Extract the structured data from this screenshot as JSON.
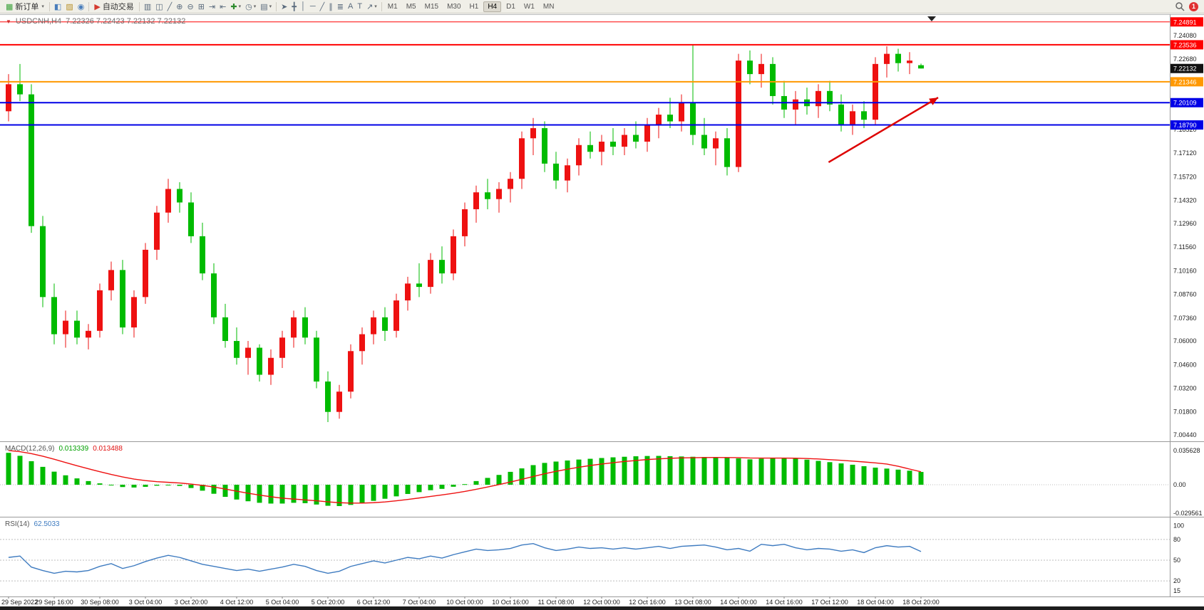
{
  "toolbar": {
    "caret": "▾",
    "new_order": {
      "label": "新订单",
      "glyph": "▦"
    },
    "left_icons": [
      {
        "name": "new-chart-icon",
        "glyph": "◧",
        "color": "#4a7ebb"
      },
      {
        "name": "profiles-icon",
        "glyph": "▨",
        "color": "#b8912a"
      },
      {
        "name": "refresh-icon",
        "glyph": "◉",
        "color": "#4a7ebb"
      }
    ],
    "auto_trading": {
      "label": "自动交易",
      "glyph": "▶",
      "glyph_color": "#d43a2f"
    },
    "chart_icons": [
      {
        "name": "bar-chart-icon",
        "glyph": "▥"
      },
      {
        "name": "candlestick-chart-icon",
        "glyph": "◫"
      },
      {
        "name": "line-chart-icon",
        "glyph": "╱"
      },
      {
        "name": "zoom-in-icon",
        "glyph": "⊕"
      },
      {
        "name": "zoom-out-icon",
        "glyph": "⊖"
      },
      {
        "name": "tile-windows-icon",
        "glyph": "⊞"
      },
      {
        "name": "auto-scroll-icon",
        "glyph": "⇥"
      },
      {
        "name": "chart-shift-icon",
        "glyph": "⇤"
      },
      {
        "name": "indicators-icon",
        "glyph": "✚",
        "color": "#2e8b2e",
        "dropdown": true
      },
      {
        "name": "periods-icon",
        "glyph": "◷",
        "dropdown": true
      },
      {
        "name": "templates-icon",
        "glyph": "▤",
        "dropdown": true
      }
    ],
    "draw_icons": [
      {
        "name": "cursor-icon",
        "glyph": "➤"
      },
      {
        "name": "crosshair-icon",
        "glyph": "╋"
      },
      {
        "name": "vertical-line-icon",
        "glyph": "│"
      },
      {
        "name": "horizontal-line-icon",
        "glyph": "─"
      },
      {
        "name": "trendline-icon",
        "glyph": "╱"
      },
      {
        "name": "channel-icon",
        "glyph": "∥"
      },
      {
        "name": "fibonacci-icon",
        "glyph": "≣"
      },
      {
        "name": "text-icon",
        "glyph": "A"
      },
      {
        "name": "text-label-icon",
        "glyph": "T"
      },
      {
        "name": "arrows-icon",
        "glyph": "↗",
        "dropdown": true
      }
    ],
    "timeframes": [
      "M1",
      "M5",
      "M15",
      "M30",
      "H1",
      "H4",
      "D1",
      "W1",
      "MN"
    ],
    "active_timeframe": "H4",
    "notification_count": "1"
  },
  "chart": {
    "window_icon": "▼",
    "title": "USDCNH,H4",
    "ohlc_text": "7.22326 7.22423 7.22132 7.22132"
  },
  "chart_data": {
    "type": "candlestick",
    "symbol": "USDCNH",
    "timeframe": "H4",
    "current_bar_ohlc": [
      7.22326,
      7.22423,
      7.22132,
      7.22132
    ],
    "up_color": "#ee1111",
    "down_color": "#00bb00",
    "price_axis": {
      "plain_labels": [
        "7.24080",
        "7.22680",
        "7.18520",
        "7.17120",
        "7.15720",
        "7.14320",
        "7.12960",
        "7.11560",
        "7.10160",
        "7.08760",
        "7.07360",
        "7.06000",
        "7.04600",
        "7.03200",
        "7.01800",
        "7.00440"
      ],
      "badges": [
        {
          "text": "7.24891",
          "price": 7.24891,
          "color": "#ff0000"
        },
        {
          "text": "7.23536",
          "price": 7.23536,
          "color": "#ff0000"
        },
        {
          "text": "7.22132",
          "price": 7.22132,
          "color": "#111111"
        },
        {
          "text": "7.21346",
          "price": 7.21346,
          "color": "#ff9800"
        },
        {
          "text": "7.20109",
          "price": 7.20109,
          "color": "#0000e6"
        },
        {
          "text": "7.18790",
          "price": 7.1879,
          "color": "#0000e6"
        }
      ]
    },
    "hlines": [
      {
        "name": "hline-upper-red",
        "price": 7.24891,
        "color": "#ff0000",
        "width": 1
      },
      {
        "name": "hline-resistance-red",
        "price": 7.23536,
        "color": "#ff0000",
        "width": 2
      },
      {
        "name": "hline-orange",
        "price": 7.21346,
        "color": "#ff9800",
        "width": 2
      },
      {
        "name": "hline-blue-upper",
        "price": 7.20109,
        "color": "#0000e6",
        "width": 2
      },
      {
        "name": "hline-blue-lower",
        "price": 7.1879,
        "color": "#0000e6",
        "width": 2
      }
    ],
    "annotation_arrow": {
      "from_bar": 71.9,
      "from_price": 7.1658,
      "to_bar": 81.5,
      "to_price": 7.2041,
      "color": "#dd0000"
    },
    "candles": [
      [
        7.196,
        7.218,
        7.19,
        7.212
      ],
      [
        7.212,
        7.224,
        7.202,
        7.206
      ],
      [
        7.206,
        7.212,
        7.124,
        7.128
      ],
      [
        7.128,
        7.134,
        7.08,
        7.086
      ],
      [
        7.086,
        7.094,
        7.058,
        7.064
      ],
      [
        7.064,
        7.078,
        7.056,
        7.072
      ],
      [
        7.072,
        7.078,
        7.058,
        7.062
      ],
      [
        7.062,
        7.07,
        7.055,
        7.066
      ],
      [
        7.066,
        7.094,
        7.062,
        7.09
      ],
      [
        7.09,
        7.107,
        7.084,
        7.102
      ],
      [
        7.102,
        7.108,
        7.064,
        7.068
      ],
      [
        7.068,
        7.09,
        7.062,
        7.086
      ],
      [
        7.086,
        7.118,
        7.082,
        7.114
      ],
      [
        7.114,
        7.14,
        7.108,
        7.136
      ],
      [
        7.136,
        7.156,
        7.13,
        7.15
      ],
      [
        7.15,
        7.154,
        7.136,
        7.142
      ],
      [
        7.142,
        7.148,
        7.118,
        7.122
      ],
      [
        7.122,
        7.13,
        7.096,
        7.1
      ],
      [
        7.1,
        7.106,
        7.07,
        7.074
      ],
      [
        7.074,
        7.082,
        7.056,
        7.06
      ],
      [
        7.06,
        7.068,
        7.046,
        7.05
      ],
      [
        7.05,
        7.06,
        7.04,
        7.056
      ],
      [
        7.056,
        7.058,
        7.036,
        7.04
      ],
      [
        7.04,
        7.055,
        7.034,
        7.05
      ],
      [
        7.05,
        7.066,
        7.044,
        7.062
      ],
      [
        7.062,
        7.078,
        7.056,
        7.074
      ],
      [
        7.074,
        7.08,
        7.058,
        7.062
      ],
      [
        7.062,
        7.066,
        7.032,
        7.036
      ],
      [
        7.036,
        7.042,
        7.012,
        7.018
      ],
      [
        7.018,
        7.034,
        7.014,
        7.03
      ],
      [
        7.03,
        7.058,
        7.026,
        7.054
      ],
      [
        7.054,
        7.068,
        7.046,
        7.064
      ],
      [
        7.064,
        7.078,
        7.058,
        7.074
      ],
      [
        7.074,
        7.08,
        7.06,
        7.066
      ],
      [
        7.066,
        7.088,
        7.062,
        7.084
      ],
      [
        7.084,
        7.098,
        7.078,
        7.094
      ],
      [
        7.094,
        7.106,
        7.086,
        7.092
      ],
      [
        7.092,
        7.112,
        7.088,
        7.108
      ],
      [
        7.108,
        7.116,
        7.094,
        7.1
      ],
      [
        7.1,
        7.126,
        7.096,
        7.122
      ],
      [
        7.122,
        7.142,
        7.116,
        7.138
      ],
      [
        7.138,
        7.152,
        7.13,
        7.148
      ],
      [
        7.148,
        7.156,
        7.138,
        7.144
      ],
      [
        7.144,
        7.154,
        7.136,
        7.15
      ],
      [
        7.15,
        7.16,
        7.142,
        7.156
      ],
      [
        7.156,
        7.184,
        7.15,
        7.18
      ],
      [
        7.18,
        7.192,
        7.17,
        7.186
      ],
      [
        7.186,
        7.19,
        7.16,
        7.165
      ],
      [
        7.165,
        7.172,
        7.15,
        7.155
      ],
      [
        7.155,
        7.168,
        7.148,
        7.164
      ],
      [
        7.164,
        7.18,
        7.158,
        7.176
      ],
      [
        7.176,
        7.184,
        7.168,
        7.172
      ],
      [
        7.172,
        7.182,
        7.164,
        7.178
      ],
      [
        7.178,
        7.186,
        7.17,
        7.175
      ],
      [
        7.175,
        7.186,
        7.17,
        7.182
      ],
      [
        7.182,
        7.19,
        7.174,
        7.178
      ],
      [
        7.178,
        7.192,
        7.172,
        7.188
      ],
      [
        7.188,
        7.198,
        7.18,
        7.194
      ],
      [
        7.194,
        7.204,
        7.186,
        7.19
      ],
      [
        7.19,
        7.206,
        7.184,
        7.201
      ],
      [
        7.201,
        7.2353,
        7.176,
        7.182
      ],
      [
        7.182,
        7.192,
        7.17,
        7.174
      ],
      [
        7.174,
        7.184,
        7.164,
        7.18
      ],
      [
        7.18,
        7.186,
        7.158,
        7.163
      ],
      [
        7.163,
        7.23,
        7.16,
        7.226
      ],
      [
        7.226,
        7.232,
        7.212,
        7.218
      ],
      [
        7.218,
        7.23,
        7.21,
        7.224
      ],
      [
        7.224,
        7.228,
        7.2,
        7.205
      ],
      [
        7.205,
        7.214,
        7.192,
        7.197
      ],
      [
        7.197,
        7.208,
        7.188,
        7.203
      ],
      [
        7.203,
        7.21,
        7.194,
        7.199
      ],
      [
        7.199,
        7.212,
        7.192,
        7.208
      ],
      [
        7.208,
        7.214,
        7.196,
        7.2
      ],
      [
        7.2,
        7.206,
        7.184,
        7.188
      ],
      [
        7.188,
        7.2,
        7.182,
        7.196
      ],
      [
        7.196,
        7.202,
        7.186,
        7.191
      ],
      [
        7.191,
        7.228,
        7.188,
        7.224
      ],
      [
        7.224,
        7.2345,
        7.216,
        7.23
      ],
      [
        7.23,
        7.233,
        7.2195,
        7.2245
      ],
      [
        7.2245,
        7.231,
        7.218,
        7.226
      ],
      [
        7.22326,
        7.22423,
        7.22132,
        7.22132
      ]
    ],
    "x_labels": [
      {
        "bar": 0,
        "text": "29 Sep 2022"
      },
      {
        "bar": 4,
        "text": "29 Sep 16:00"
      },
      {
        "bar": 8,
        "text": "30 Sep 08:00"
      },
      {
        "bar": 12,
        "text": "3 Oct 04:00"
      },
      {
        "bar": 16,
        "text": "3 Oct 20:00"
      },
      {
        "bar": 20,
        "text": "4 Oct 12:00"
      },
      {
        "bar": 24,
        "text": "5 Oct 04:00"
      },
      {
        "bar": 28,
        "text": "5 Oct 20:00"
      },
      {
        "bar": 32,
        "text": "6 Oct 12:00"
      },
      {
        "bar": 36,
        "text": "7 Oct 04:00"
      },
      {
        "bar": 40,
        "text": "10 Oct 00:00"
      },
      {
        "bar": 44,
        "text": "10 Oct 16:00"
      },
      {
        "bar": 48,
        "text": "11 Oct 08:00"
      },
      {
        "bar": 52,
        "text": "12 Oct 00:00"
      },
      {
        "bar": 56,
        "text": "12 Oct 16:00"
      },
      {
        "bar": 60,
        "text": "13 Oct 08:00"
      },
      {
        "bar": 64,
        "text": "14 Oct 00:00"
      },
      {
        "bar": 68,
        "text": "14 Oct 16:00"
      },
      {
        "bar": 72,
        "text": "17 Oct 12:00"
      },
      {
        "bar": 76,
        "text": "18 Oct 04:00"
      },
      {
        "bar": 80,
        "text": "18 Oct 20:00"
      }
    ],
    "macd": {
      "label": "MACD(12,26,9)",
      "value_main": "0.013339",
      "value_signal": "0.013488",
      "hist_color": "#00bb00",
      "signal_color": "#ee1111",
      "axis_labels": [
        {
          "text": "0.035628",
          "value": 0.035628
        },
        {
          "text": "0.00",
          "value": 0
        },
        {
          "text": "-0.029561",
          "value": -0.029561
        }
      ],
      "histogram": [
        0.0332,
        0.0301,
        0.0245,
        0.0186,
        0.0136,
        0.0098,
        0.0066,
        0.0038,
        0.0014,
        -0.0006,
        -0.0024,
        -0.0029,
        -0.0022,
        -0.001,
        -0.0004,
        -0.0012,
        -0.0034,
        -0.0062,
        -0.0094,
        -0.0126,
        -0.0154,
        -0.0172,
        -0.0188,
        -0.0196,
        -0.0196,
        -0.0188,
        -0.0192,
        -0.0206,
        -0.0219,
        -0.0222,
        -0.021,
        -0.0192,
        -0.0168,
        -0.0146,
        -0.0121,
        -0.0096,
        -0.0077,
        -0.0057,
        -0.0043,
        -0.0021,
        0.0006,
        0.0038,
        0.0071,
        0.0102,
        0.0134,
        0.017,
        0.0204,
        0.0227,
        0.0241,
        0.0252,
        0.0262,
        0.027,
        0.0278,
        0.0285,
        0.0291,
        0.0296,
        0.0299,
        0.03,
        0.0297,
        0.0294,
        0.0291,
        0.0289,
        0.0288,
        0.0282,
        0.0274,
        0.0264,
        0.0272,
        0.0277,
        0.0279,
        0.0272,
        0.0261,
        0.0248,
        0.0235,
        0.0222,
        0.0208,
        0.0193,
        0.0178,
        0.0168,
        0.0157,
        0.0146,
        0.0133
      ],
      "signal": [
        0.0356,
        0.0344,
        0.0324,
        0.0297,
        0.0265,
        0.0231,
        0.0198,
        0.0166,
        0.0136,
        0.0107,
        0.0081,
        0.0059,
        0.0043,
        0.0032,
        0.0025,
        0.0018,
        0.0007,
        -0.0007,
        -0.0024,
        -0.0045,
        -0.0067,
        -0.0088,
        -0.0108,
        -0.0125,
        -0.014,
        -0.0149,
        -0.0158,
        -0.0167,
        -0.0178,
        -0.0187,
        -0.0191,
        -0.0191,
        -0.0187,
        -0.0179,
        -0.0167,
        -0.0153,
        -0.0138,
        -0.0122,
        -0.0106,
        -0.0089,
        -0.007,
        -0.0048,
        -0.0024,
        0.0001,
        0.0028,
        0.0056,
        0.0086,
        0.0114,
        0.0139,
        0.0162,
        0.0182,
        0.02,
        0.0215,
        0.0229,
        0.0242,
        0.0252,
        0.0262,
        0.0269,
        0.0275,
        0.0279,
        0.0281,
        0.0283,
        0.0284,
        0.0283,
        0.0282,
        0.0278,
        0.0277,
        0.0277,
        0.0277,
        0.0276,
        0.0273,
        0.0268,
        0.0261,
        0.0254,
        0.0246,
        0.0237,
        0.0227,
        0.0215,
        0.0192,
        0.0163,
        0.0135
      ]
    },
    "rsi": {
      "label": "RSI(14)",
      "value": "62.5033",
      "line_color": "#3e7bc0",
      "levels": [
        80,
        50,
        20
      ],
      "axis_labels": [
        {
          "text": "100",
          "value": 100
        },
        {
          "text": "80",
          "value": 80
        },
        {
          "text": "50",
          "value": 50
        },
        {
          "text": "20",
          "value": 20
        },
        {
          "text": "15",
          "value": 15
        }
      ],
      "values": [
        54,
        56,
        40,
        35,
        31,
        34,
        33,
        35,
        41,
        45,
        38,
        42,
        48,
        53,
        57,
        54,
        49,
        44,
        41,
        38,
        35,
        37,
        34,
        37,
        40,
        44,
        41,
        35,
        31,
        34,
        41,
        45,
        49,
        46,
        50,
        54,
        52,
        56,
        53,
        58,
        62,
        66,
        64,
        65,
        67,
        72,
        74,
        68,
        64,
        66,
        69,
        67,
        68,
        66,
        68,
        66,
        68,
        70,
        67,
        70,
        71,
        72,
        69,
        65,
        67,
        63,
        73,
        71,
        73,
        68,
        65,
        67,
        66,
        63,
        65,
        61,
        68,
        71,
        69,
        70,
        62.5
      ]
    }
  }
}
